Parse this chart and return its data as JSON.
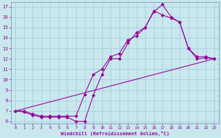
{
  "xlabel": "Windchill (Refroidissement éolien,°C)",
  "background_color": "#c8e8ee",
  "grid_color": "#a0c8d8",
  "line_color": "#990099",
  "spine_color": "#7799aa",
  "xlim": [
    -0.5,
    23.5
  ],
  "ylim": [
    5.8,
    17.4
  ],
  "xticks": [
    0,
    1,
    2,
    3,
    4,
    5,
    6,
    7,
    8,
    9,
    10,
    11,
    12,
    13,
    14,
    15,
    16,
    17,
    18,
    19,
    20,
    21,
    22,
    23
  ],
  "yticks": [
    6,
    7,
    8,
    9,
    10,
    11,
    12,
    13,
    14,
    15,
    16,
    17
  ],
  "line1_x": [
    0,
    1,
    2,
    3,
    4,
    5,
    6,
    7,
    8,
    9,
    10,
    11,
    12,
    13,
    14,
    15,
    16,
    17,
    18,
    19,
    20,
    21,
    22,
    23
  ],
  "line1_y": [
    7.0,
    6.9,
    6.6,
    6.4,
    6.4,
    6.4,
    6.4,
    6.0,
    6.0,
    8.5,
    10.5,
    12.0,
    12.0,
    13.5,
    14.5,
    15.0,
    16.5,
    17.2,
    16.0,
    15.5,
    13.0,
    12.0,
    12.1,
    12.0
  ],
  "line2_x": [
    0,
    1,
    2,
    3,
    4,
    5,
    6,
    7,
    8,
    9,
    10,
    11,
    12,
    13,
    14,
    15,
    16,
    17,
    18,
    19,
    20,
    21,
    22,
    23
  ],
  "line2_y": [
    7.0,
    7.0,
    6.7,
    6.5,
    6.5,
    6.5,
    6.5,
    6.5,
    8.6,
    10.5,
    11.0,
    12.2,
    12.5,
    13.8,
    14.2,
    15.0,
    16.6,
    16.2,
    15.9,
    15.5,
    13.0,
    12.2,
    12.2,
    12.0
  ],
  "line3_x": [
    0,
    23
  ],
  "line3_y": [
    7.0,
    12.0
  ]
}
